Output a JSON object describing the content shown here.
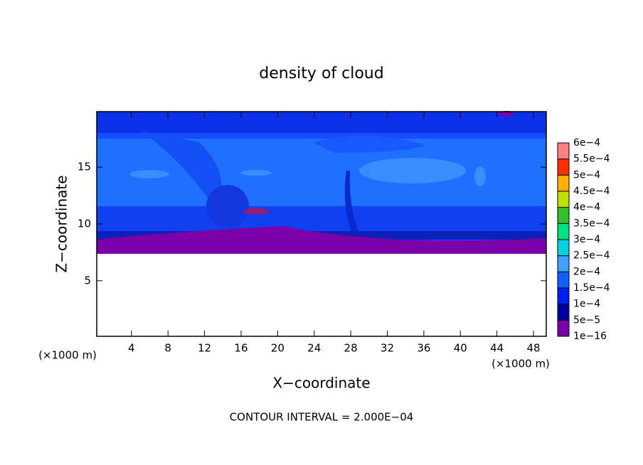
{
  "chart_data": {
    "type": "contour",
    "title": "density of cloud",
    "x_label": "X−coordinate",
    "y_label": "Z−coordinate",
    "x_unit": "(×1000 m)",
    "y_unit": "(×1000 m)",
    "note": "CONTOUR INTERVAL = 2.000E−04",
    "xlim": [
      0.2,
      49.4
    ],
    "xticks": [
      4,
      8,
      12,
      16,
      20,
      24,
      28,
      32,
      36,
      40,
      44,
      48
    ],
    "ylim": [
      0.1,
      19.9
    ],
    "yticks": [
      5,
      10,
      15
    ],
    "colorbar": {
      "levels": [
        {
          "value": 1e-16,
          "label": "1e−16"
        },
        {
          "value": 5e-05,
          "label": "5e−5"
        },
        {
          "value": 0.0001,
          "label": "1e−4"
        },
        {
          "value": 0.00015,
          "label": "1.5e−4"
        },
        {
          "value": 0.0002,
          "label": "2e−4"
        },
        {
          "value": 0.00025,
          "label": "2.5e−4"
        },
        {
          "value": 0.0003,
          "label": "3e−4"
        },
        {
          "value": 0.00035,
          "label": "3.5e−4"
        },
        {
          "value": 0.0004,
          "label": "4e−4"
        },
        {
          "value": 0.00045,
          "label": "4.5e−4"
        },
        {
          "value": 0.0005,
          "label": "5e−4"
        },
        {
          "value": 0.00055,
          "label": "5.5e−4"
        },
        {
          "value": 0.0006,
          "label": "6e−4"
        }
      ],
      "colors": [
        "#7a00a8",
        "#0000a0",
        "#0020f0",
        "#1060ff",
        "#40a0ff",
        "#00d0e0",
        "#00e080",
        "#30c030",
        "#c0e000",
        "#ffb000",
        "#ff3000",
        "#ff8080"
      ]
    }
  }
}
